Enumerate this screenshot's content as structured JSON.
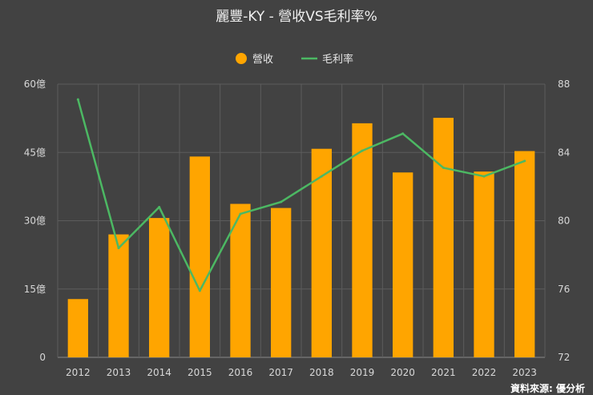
{
  "chart_data": {
    "type": "bar+line",
    "title": "麗豐-KY - 營收VS毛利率%",
    "categories": [
      "2012",
      "2013",
      "2014",
      "2015",
      "2016",
      "2017",
      "2018",
      "2019",
      "2020",
      "2021",
      "2022",
      "2023"
    ],
    "series": [
      {
        "name": "營收",
        "type": "bar",
        "axis": "left",
        "color": "#FFA500",
        "values": [
          12.8,
          27.0,
          30.6,
          44.1,
          33.7,
          32.8,
          45.8,
          51.4,
          40.6,
          52.6,
          40.8,
          45.3
        ]
      },
      {
        "name": "毛利率",
        "type": "line",
        "axis": "right",
        "color": "#4CB863",
        "values": [
          87.1,
          78.4,
          80.8,
          75.9,
          80.4,
          81.1,
          82.6,
          84.1,
          85.1,
          83.1,
          82.6,
          83.5
        ]
      }
    ],
    "left_axis": {
      "ylim": [
        0,
        60
      ],
      "ticks": [
        0,
        15,
        30,
        45,
        60
      ],
      "tick_labels": [
        "0",
        "15億",
        "30億",
        "45億",
        "60億"
      ]
    },
    "right_axis": {
      "ylim": [
        72,
        88
      ],
      "ticks": [
        72,
        76,
        80,
        84,
        88
      ],
      "tick_labels": [
        "72",
        "76",
        "80",
        "84",
        "88"
      ]
    },
    "legend_position": "top-center",
    "grid": true
  },
  "source_text": "資料來源: 優分析"
}
